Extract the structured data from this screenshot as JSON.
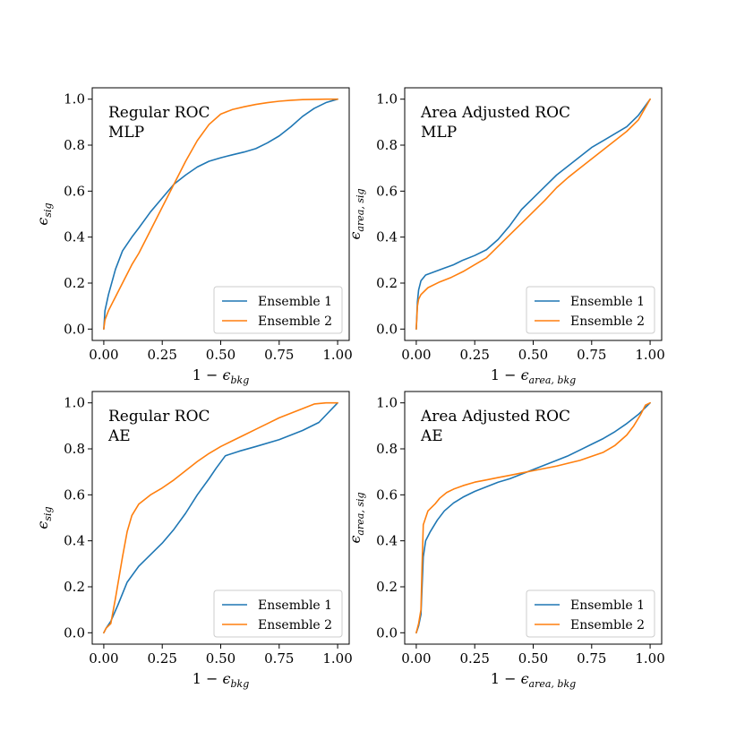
{
  "colors": {
    "ensemble1": "#1f77b4",
    "ensemble2": "#ff7f0e"
  },
  "chart_data": [
    {
      "type": "line",
      "title_lines": [
        "Regular ROC",
        "MLP"
      ],
      "xlabel": {
        "prefix": "1 − ",
        "symbol": "ϵ",
        "sub": "bkg"
      },
      "ylabel": {
        "symbol": "ϵ",
        "sub": "sig"
      },
      "xlim": [
        0,
        1
      ],
      "ylim": [
        0,
        1
      ],
      "xticks": [
        "0.00",
        "0.25",
        "0.50",
        "0.75",
        "1.00"
      ],
      "yticks": [
        "0.0",
        "0.2",
        "0.4",
        "0.6",
        "0.8",
        "1.0"
      ],
      "legend": {
        "position": "lower-right",
        "entries": [
          "Ensemble 1",
          "Ensemble 2"
        ]
      },
      "series": [
        {
          "name": "Ensemble 1",
          "x": [
            0.0,
            0.005,
            0.02,
            0.05,
            0.08,
            0.12,
            0.15,
            0.2,
            0.25,
            0.3,
            0.35,
            0.4,
            0.45,
            0.5,
            0.55,
            0.6,
            0.65,
            0.7,
            0.75,
            0.8,
            0.85,
            0.9,
            0.95,
            1.0
          ],
          "y": [
            0.0,
            0.08,
            0.15,
            0.26,
            0.34,
            0.4,
            0.44,
            0.51,
            0.57,
            0.63,
            0.67,
            0.705,
            0.73,
            0.745,
            0.758,
            0.77,
            0.785,
            0.81,
            0.84,
            0.88,
            0.925,
            0.96,
            0.985,
            1.0
          ]
        },
        {
          "name": "Ensemble 2",
          "x": [
            0.0,
            0.005,
            0.02,
            0.05,
            0.08,
            0.12,
            0.15,
            0.2,
            0.25,
            0.3,
            0.35,
            0.4,
            0.45,
            0.5,
            0.55,
            0.6,
            0.65,
            0.7,
            0.75,
            0.8,
            0.85,
            0.9,
            0.95,
            1.0
          ],
          "y": [
            0.0,
            0.04,
            0.08,
            0.14,
            0.2,
            0.28,
            0.33,
            0.43,
            0.53,
            0.63,
            0.73,
            0.82,
            0.89,
            0.935,
            0.955,
            0.967,
            0.977,
            0.985,
            0.991,
            0.995,
            0.998,
            0.999,
            1.0,
            1.0
          ]
        }
      ]
    },
    {
      "type": "line",
      "title_lines": [
        "Area Adjusted ROC",
        "MLP"
      ],
      "xlabel": {
        "prefix": "1 − ",
        "symbol": "ϵ",
        "sub": "area, bkg"
      },
      "ylabel": {
        "symbol": "ϵ",
        "sub": "area, sig"
      },
      "xlim": [
        0,
        1
      ],
      "ylim": [
        0,
        1
      ],
      "xticks": [
        "0.00",
        "0.25",
        "0.50",
        "0.75",
        "1.00"
      ],
      "yticks": [
        "0.0",
        "0.2",
        "0.4",
        "0.6",
        "0.8",
        "1.0"
      ],
      "legend": {
        "position": "lower-right",
        "entries": [
          "Ensemble 1",
          "Ensemble 2"
        ]
      },
      "series": [
        {
          "name": "Ensemble 1",
          "x": [
            0.0,
            0.005,
            0.01,
            0.02,
            0.04,
            0.08,
            0.12,
            0.16,
            0.2,
            0.25,
            0.3,
            0.35,
            0.4,
            0.45,
            0.5,
            0.55,
            0.6,
            0.65,
            0.7,
            0.75,
            0.8,
            0.85,
            0.9,
            0.95,
            1.0
          ],
          "y": [
            0.0,
            0.12,
            0.17,
            0.21,
            0.235,
            0.25,
            0.265,
            0.28,
            0.3,
            0.32,
            0.345,
            0.39,
            0.45,
            0.52,
            0.57,
            0.62,
            0.67,
            0.71,
            0.75,
            0.79,
            0.82,
            0.85,
            0.88,
            0.93,
            1.0
          ]
        },
        {
          "name": "Ensemble 2",
          "x": [
            0.0,
            0.005,
            0.01,
            0.02,
            0.05,
            0.1,
            0.15,
            0.2,
            0.25,
            0.3,
            0.35,
            0.4,
            0.45,
            0.5,
            0.55,
            0.6,
            0.65,
            0.7,
            0.75,
            0.8,
            0.85,
            0.9,
            0.95,
            1.0
          ],
          "y": [
            0.0,
            0.1,
            0.13,
            0.15,
            0.18,
            0.205,
            0.225,
            0.25,
            0.28,
            0.31,
            0.36,
            0.41,
            0.46,
            0.51,
            0.56,
            0.615,
            0.66,
            0.7,
            0.74,
            0.78,
            0.82,
            0.86,
            0.91,
            1.0
          ]
        }
      ]
    },
    {
      "type": "line",
      "title_lines": [
        "Regular ROC",
        "AE"
      ],
      "xlabel": {
        "prefix": "1 − ",
        "symbol": "ϵ",
        "sub": "bkg"
      },
      "ylabel": {
        "symbol": "ϵ",
        "sub": "sig"
      },
      "xlim": [
        0,
        1
      ],
      "ylim": [
        0,
        1
      ],
      "xticks": [
        "0.00",
        "0.25",
        "0.50",
        "0.75",
        "1.00"
      ],
      "yticks": [
        "0.0",
        "0.2",
        "0.4",
        "0.6",
        "0.8",
        "1.0"
      ],
      "legend": {
        "position": "lower-right",
        "entries": [
          "Ensemble 1",
          "Ensemble 2"
        ]
      },
      "series": [
        {
          "name": "Ensemble 1",
          "x": [
            0.0,
            0.01,
            0.03,
            0.06,
            0.1,
            0.15,
            0.2,
            0.25,
            0.3,
            0.35,
            0.4,
            0.45,
            0.48,
            0.52,
            0.58,
            0.65,
            0.75,
            0.85,
            0.92,
            1.0
          ],
          "y": [
            0.0,
            0.02,
            0.05,
            0.12,
            0.22,
            0.29,
            0.34,
            0.39,
            0.45,
            0.52,
            0.6,
            0.67,
            0.715,
            0.77,
            0.79,
            0.81,
            0.84,
            0.88,
            0.915,
            1.0
          ]
        },
        {
          "name": "Ensemble 2",
          "x": [
            0.0,
            0.01,
            0.03,
            0.05,
            0.08,
            0.1,
            0.12,
            0.15,
            0.2,
            0.25,
            0.3,
            0.35,
            0.4,
            0.45,
            0.5,
            0.55,
            0.6,
            0.65,
            0.7,
            0.75,
            0.8,
            0.85,
            0.9,
            0.95,
            1.0
          ],
          "y": [
            0.0,
            0.02,
            0.04,
            0.15,
            0.33,
            0.44,
            0.51,
            0.56,
            0.6,
            0.63,
            0.665,
            0.705,
            0.745,
            0.78,
            0.81,
            0.835,
            0.86,
            0.885,
            0.91,
            0.935,
            0.955,
            0.975,
            0.995,
            1.0,
            1.0
          ]
        }
      ]
    },
    {
      "type": "line",
      "title_lines": [
        "Area Adjusted ROC",
        "AE"
      ],
      "xlabel": {
        "prefix": "1 − ",
        "symbol": "ϵ",
        "sub": "area, bkg"
      },
      "ylabel": {
        "symbol": "ϵ",
        "sub": "area, sig"
      },
      "xlim": [
        0,
        1
      ],
      "ylim": [
        0,
        1
      ],
      "xticks": [
        "0.00",
        "0.25",
        "0.50",
        "0.75",
        "1.00"
      ],
      "yticks": [
        "0.0",
        "0.2",
        "0.4",
        "0.6",
        "0.8",
        "1.0"
      ],
      "legend": {
        "position": "lower-right",
        "entries": [
          "Ensemble 1",
          "Ensemble 2"
        ]
      },
      "series": [
        {
          "name": "Ensemble 1",
          "x": [
            0.0,
            0.01,
            0.02,
            0.03,
            0.04,
            0.06,
            0.09,
            0.12,
            0.16,
            0.2,
            0.25,
            0.3,
            0.35,
            0.4,
            0.45,
            0.5,
            0.55,
            0.6,
            0.65,
            0.7,
            0.75,
            0.8,
            0.85,
            0.9,
            0.95,
            1.0
          ],
          "y": [
            0.0,
            0.03,
            0.08,
            0.33,
            0.4,
            0.44,
            0.49,
            0.53,
            0.565,
            0.59,
            0.615,
            0.635,
            0.655,
            0.67,
            0.69,
            0.71,
            0.73,
            0.75,
            0.77,
            0.795,
            0.82,
            0.845,
            0.875,
            0.91,
            0.95,
            1.0
          ]
        },
        {
          "name": "Ensemble 2",
          "x": [
            0.0,
            0.01,
            0.02,
            0.025,
            0.03,
            0.05,
            0.08,
            0.1,
            0.13,
            0.16,
            0.2,
            0.25,
            0.3,
            0.35,
            0.4,
            0.45,
            0.5,
            0.6,
            0.7,
            0.8,
            0.85,
            0.9,
            0.93,
            0.96,
            0.98,
            1.0
          ],
          "y": [
            0.0,
            0.04,
            0.1,
            0.3,
            0.47,
            0.53,
            0.56,
            0.585,
            0.61,
            0.625,
            0.64,
            0.655,
            0.665,
            0.675,
            0.685,
            0.695,
            0.705,
            0.725,
            0.75,
            0.785,
            0.815,
            0.86,
            0.9,
            0.95,
            0.99,
            1.0
          ]
        }
      ]
    }
  ]
}
